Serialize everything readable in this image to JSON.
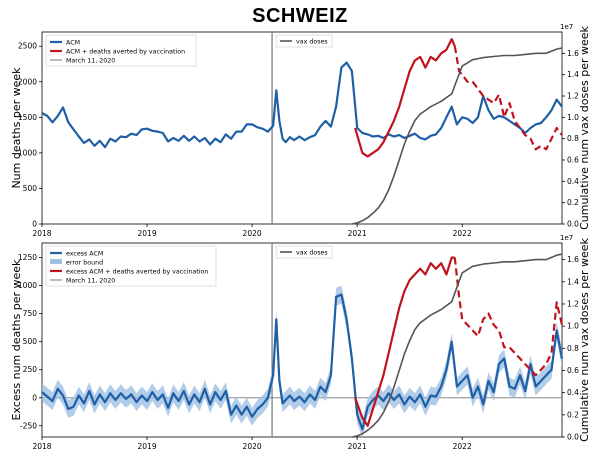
{
  "title": "SCHWEIZ",
  "colors": {
    "acm": "#1f5fa6",
    "averted": "#c0141c",
    "vax": "#555555",
    "marker": "#777777",
    "band": "#9ec1e3"
  },
  "chart_data": [
    {
      "type": "line",
      "ylabel": "Num deaths per week",
      "y2label": "Cumulative num vax doses per week",
      "y2_exponent": "1e7",
      "xlim": [
        2018.0,
        2022.95
      ],
      "ylim": [
        0,
        2700
      ],
      "y2lim": [
        0,
        1.8
      ],
      "x_ticks": [
        2018,
        2019,
        2020,
        2021,
        2022
      ],
      "x_tick_labels": [
        "2018",
        "2019",
        "2020",
        "2021",
        "2022"
      ],
      "y_ticks": [
        0,
        500,
        1000,
        1500,
        2000,
        2500
      ],
      "y2_ticks": [
        0.0,
        0.2,
        0.4,
        0.6,
        0.8,
        1.0,
        1.2,
        1.4,
        1.6
      ],
      "legend_left": [
        "ACM",
        "ACM + deaths averted by vaccination",
        "March 11, 2020"
      ],
      "legend_right": [
        "vax doses"
      ],
      "march_2020": 2020.19,
      "series": [
        {
          "name": "ACM",
          "x": [
            2018.0,
            2018.05,
            2018.1,
            2018.15,
            2018.2,
            2018.25,
            2018.3,
            2018.35,
            2018.4,
            2018.45,
            2018.5,
            2018.55,
            2018.6,
            2018.65,
            2018.7,
            2018.75,
            2018.8,
            2018.85,
            2018.9,
            2018.95,
            2019.0,
            2019.05,
            2019.1,
            2019.15,
            2019.2,
            2019.25,
            2019.3,
            2019.35,
            2019.4,
            2019.45,
            2019.5,
            2019.55,
            2019.6,
            2019.65,
            2019.7,
            2019.75,
            2019.8,
            2019.85,
            2019.9,
            2019.95,
            2020.0,
            2020.05,
            2020.1,
            2020.15,
            2020.2,
            2020.23,
            2020.26,
            2020.29,
            2020.32,
            2020.36,
            2020.4,
            2020.45,
            2020.5,
            2020.55,
            2020.6,
            2020.65,
            2020.7,
            2020.75,
            2020.8,
            2020.85,
            2020.9,
            2020.95,
            2021.0,
            2021.05,
            2021.1,
            2021.15,
            2021.2,
            2021.25,
            2021.3,
            2021.35,
            2021.4,
            2021.45,
            2021.5,
            2021.55,
            2021.6,
            2021.65,
            2021.7,
            2021.75,
            2021.8,
            2021.85,
            2021.9,
            2021.95,
            2022.0,
            2022.05,
            2022.1,
            2022.15,
            2022.2,
            2022.25,
            2022.3,
            2022.35,
            2022.4,
            2022.45,
            2022.5,
            2022.55,
            2022.6,
            2022.65,
            2022.7,
            2022.75,
            2022.8,
            2022.85,
            2022.9,
            2022.95
          ],
          "values": [
            1560,
            1520,
            1430,
            1520,
            1640,
            1430,
            1330,
            1230,
            1140,
            1190,
            1100,
            1170,
            1080,
            1200,
            1160,
            1230,
            1220,
            1270,
            1250,
            1330,
            1340,
            1310,
            1300,
            1280,
            1160,
            1210,
            1170,
            1240,
            1170,
            1230,
            1160,
            1210,
            1120,
            1200,
            1150,
            1260,
            1200,
            1300,
            1300,
            1400,
            1400,
            1360,
            1340,
            1300,
            1380,
            1880,
            1450,
            1200,
            1150,
            1220,
            1180,
            1230,
            1180,
            1220,
            1250,
            1370,
            1450,
            1370,
            1650,
            2200,
            2270,
            2150,
            1350,
            1280,
            1260,
            1230,
            1240,
            1210,
            1260,
            1230,
            1250,
            1210,
            1240,
            1270,
            1210,
            1190,
            1240,
            1260,
            1350,
            1500,
            1650,
            1400,
            1500,
            1480,
            1420,
            1500,
            1800,
            1600,
            1480,
            1520,
            1500,
            1450,
            1400,
            1350,
            1280,
            1350,
            1400,
            1420,
            1500,
            1600,
            1750,
            1650
          ]
        },
        {
          "name": "ACM + deaths averted by vaccination",
          "x": [
            2020.98,
            2021.05,
            2021.1,
            2021.15,
            2021.2,
            2021.25,
            2021.3,
            2021.35,
            2021.4,
            2021.45,
            2021.5,
            2021.55,
            2021.6,
            2021.65,
            2021.7,
            2021.75,
            2021.8,
            2021.85,
            2021.9,
            2021.93
          ],
          "values": [
            1350,
            1000,
            950,
            1000,
            1050,
            1150,
            1300,
            1450,
            1650,
            1900,
            2150,
            2300,
            2350,
            2200,
            2350,
            2300,
            2400,
            2450,
            2600,
            2500
          ]
        },
        {
          "name": "ACM + deaths averted by vaccination",
          "dashed": true,
          "x": [
            2021.93,
            2021.97,
            2022.0,
            2022.05,
            2022.1,
            2022.15,
            2022.2,
            2022.25,
            2022.3,
            2022.35,
            2022.4,
            2022.45,
            2022.5,
            2022.55,
            2022.6,
            2022.65,
            2022.7,
            2022.75,
            2022.8,
            2022.85,
            2022.9,
            2022.95
          ],
          "values": [
            2500,
            2150,
            2100,
            2000,
            2000,
            1900,
            1800,
            1750,
            1700,
            1820,
            1500,
            1700,
            1450,
            1350,
            1250,
            1200,
            1050,
            1100,
            1050,
            1200,
            1350,
            1250
          ]
        },
        {
          "name": "vax doses",
          "axis": "y2",
          "x": [
            2020.95,
            2021.0,
            2021.05,
            2021.1,
            2021.15,
            2021.2,
            2021.25,
            2021.3,
            2021.35,
            2021.4,
            2021.45,
            2021.5,
            2021.55,
            2021.6,
            2021.7,
            2021.8,
            2021.9,
            2021.95,
            2022.0,
            2022.1,
            2022.2,
            2022.3,
            2022.4,
            2022.5,
            2022.6,
            2022.7,
            2022.8,
            2022.9,
            2022.95
          ],
          "values": [
            0.0,
            0.01,
            0.03,
            0.06,
            0.1,
            0.15,
            0.22,
            0.32,
            0.45,
            0.6,
            0.75,
            0.87,
            0.97,
            1.03,
            1.1,
            1.15,
            1.22,
            1.35,
            1.48,
            1.54,
            1.56,
            1.57,
            1.58,
            1.58,
            1.59,
            1.6,
            1.6,
            1.64,
            1.65
          ]
        }
      ]
    },
    {
      "type": "line",
      "ylabel": "Excess num deaths per week",
      "y2label": "Cumulative num vax doses per week",
      "y2_exponent": "1e7",
      "xlim": [
        2018.0,
        2022.95
      ],
      "ylim": [
        -350,
        1380
      ],
      "y2lim": [
        0,
        1.75
      ],
      "x_ticks": [
        2018,
        2019,
        2020,
        2021,
        2022
      ],
      "x_tick_labels": [
        "2018",
        "2019",
        "2020",
        "2021",
        "2022"
      ],
      "y_ticks": [
        -250,
        0,
        250,
        500,
        750,
        1000,
        1250
      ],
      "y2_ticks": [
        0.0,
        0.2,
        0.4,
        0.6,
        0.8,
        1.0,
        1.2,
        1.4,
        1.6
      ],
      "legend_left": [
        "excess ACM",
        "error bound",
        "excess ACM + deaths averted by vaccination",
        "March 11, 2020"
      ],
      "legend_right": [
        "vax doses"
      ],
      "march_2020": 2020.19,
      "series": [
        {
          "name": "excess ACM",
          "band": 80,
          "x": [
            2018.0,
            2018.05,
            2018.1,
            2018.15,
            2018.2,
            2018.25,
            2018.3,
            2018.35,
            2018.4,
            2018.45,
            2018.5,
            2018.55,
            2018.6,
            2018.65,
            2018.7,
            2018.75,
            2018.8,
            2018.85,
            2018.9,
            2018.95,
            2019.0,
            2019.05,
            2019.1,
            2019.15,
            2019.2,
            2019.25,
            2019.3,
            2019.35,
            2019.4,
            2019.45,
            2019.5,
            2019.55,
            2019.6,
            2019.65,
            2019.7,
            2019.75,
            2019.8,
            2019.85,
            2019.9,
            2019.95,
            2020.0,
            2020.05,
            2020.1,
            2020.15,
            2020.2,
            2020.23,
            2020.26,
            2020.29,
            2020.32,
            2020.36,
            2020.4,
            2020.45,
            2020.5,
            2020.55,
            2020.6,
            2020.65,
            2020.7,
            2020.75,
            2020.8,
            2020.85,
            2020.9,
            2020.95,
            2021.0,
            2021.05,
            2021.1,
            2021.15,
            2021.2,
            2021.25,
            2021.3,
            2021.35,
            2021.4,
            2021.45,
            2021.5,
            2021.55,
            2021.6,
            2021.65,
            2021.7,
            2021.75,
            2021.8,
            2021.85,
            2021.9,
            2021.95,
            2022.0,
            2022.05,
            2022.1,
            2022.15,
            2022.2,
            2022.25,
            2022.3,
            2022.35,
            2022.4,
            2022.45,
            2022.5,
            2022.55,
            2022.6,
            2022.65,
            2022.7,
            2022.75,
            2022.8,
            2022.85,
            2022.9,
            2022.95
          ],
          "values": [
            50,
            10,
            -30,
            80,
            20,
            -100,
            -80,
            20,
            -50,
            60,
            -60,
            30,
            -40,
            40,
            -20,
            40,
            -10,
            30,
            -40,
            20,
            -30,
            50,
            -20,
            30,
            -90,
            40,
            -30,
            60,
            -60,
            30,
            -40,
            80,
            -60,
            50,
            -20,
            60,
            -150,
            -70,
            -150,
            -80,
            -170,
            -100,
            -60,
            0,
            200,
            700,
            150,
            -50,
            -20,
            20,
            -30,
            10,
            -40,
            30,
            -20,
            100,
            50,
            200,
            900,
            920,
            700,
            350,
            -150,
            -280,
            -80,
            -20,
            20,
            -30,
            40,
            -20,
            30,
            -60,
            10,
            -40,
            30,
            -80,
            20,
            10,
            100,
            250,
            500,
            100,
            150,
            200,
            0,
            100,
            -60,
            150,
            50,
            300,
            350,
            100,
            80,
            200,
            60,
            300,
            100,
            150,
            200,
            250,
            600,
            350
          ]
        },
        {
          "name": "excess ACM + deaths averted by vaccination",
          "x": [
            2020.98,
            2021.05,
            2021.1,
            2021.15,
            2021.2,
            2021.25,
            2021.3,
            2021.35,
            2021.4,
            2021.45,
            2021.5,
            2021.55,
            2021.6,
            2021.65,
            2021.7,
            2021.75,
            2021.8,
            2021.85,
            2021.9,
            2021.93
          ],
          "values": [
            0,
            -180,
            -250,
            -100,
            50,
            200,
            400,
            600,
            800,
            950,
            1050,
            1100,
            1150,
            1100,
            1200,
            1150,
            1200,
            1100,
            1250,
            1250
          ]
        },
        {
          "name": "excess ACM + deaths averted by vaccination",
          "dashed": true,
          "x": [
            2021.93,
            2021.97,
            2022.0,
            2022.05,
            2022.1,
            2022.15,
            2022.2,
            2022.25,
            2022.3,
            2022.35,
            2022.4,
            2022.45,
            2022.5,
            2022.55,
            2022.6,
            2022.65,
            2022.7,
            2022.75,
            2022.8,
            2022.85,
            2022.9,
            2022.95
          ],
          "values": [
            1250,
            900,
            700,
            650,
            600,
            550,
            700,
            750,
            650,
            600,
            450,
            450,
            400,
            350,
            300,
            250,
            200,
            250,
            300,
            400,
            850,
            650
          ]
        },
        {
          "name": "vax doses",
          "axis": "y2",
          "x": [
            2020.95,
            2021.0,
            2021.05,
            2021.1,
            2021.15,
            2021.2,
            2021.25,
            2021.3,
            2021.35,
            2021.4,
            2021.45,
            2021.5,
            2021.55,
            2021.6,
            2021.7,
            2021.8,
            2021.9,
            2021.95,
            2022.0,
            2022.1,
            2022.2,
            2022.3,
            2022.4,
            2022.5,
            2022.6,
            2022.7,
            2022.8,
            2022.9,
            2022.95
          ],
          "values": [
            0.0,
            0.01,
            0.03,
            0.06,
            0.1,
            0.15,
            0.22,
            0.32,
            0.45,
            0.6,
            0.75,
            0.87,
            0.97,
            1.03,
            1.1,
            1.15,
            1.22,
            1.35,
            1.48,
            1.54,
            1.56,
            1.57,
            1.58,
            1.58,
            1.59,
            1.6,
            1.6,
            1.64,
            1.65
          ]
        }
      ]
    }
  ]
}
